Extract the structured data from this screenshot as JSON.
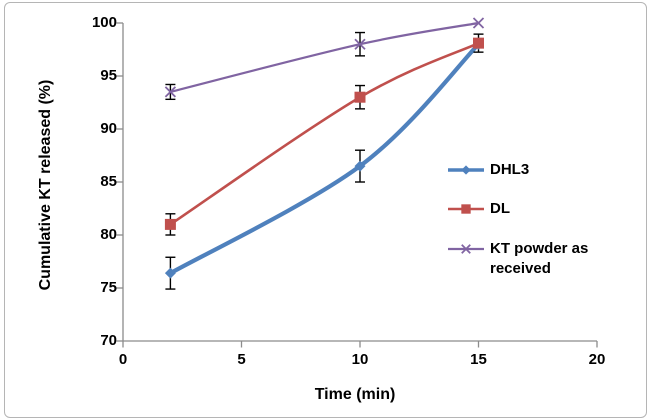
{
  "figure": {
    "background": "#ffffff",
    "border_color": "#b5b5b5"
  },
  "chart_data": {
    "type": "line",
    "title": "",
    "xlabel": "Time (min)",
    "ylabel": "Cumulative KT released (%)",
    "x": [
      2,
      10,
      15
    ],
    "series": [
      {
        "name": "DHL3",
        "values": [
          76.4,
          86.5,
          98.0
        ],
        "errors": [
          1.5,
          1.5,
          null
        ],
        "color": "#4F81BD",
        "marker": "diamond",
        "line_width": 4.2
      },
      {
        "name": "DL",
        "values": [
          81.0,
          93.0,
          98.1
        ],
        "errors": [
          1.0,
          1.1,
          0.85
        ],
        "color": "#C0504D",
        "marker": "square",
        "line_width": 2.6
      },
      {
        "name": "KT powder as received",
        "values": [
          93.5,
          98.0,
          100.0
        ],
        "errors": [
          0.7,
          1.1,
          null
        ],
        "color": "#8064A2",
        "marker": "x",
        "line_width": 2.2
      }
    ],
    "xlim": [
      0,
      20
    ],
    "ylim": [
      70,
      100
    ],
    "x_ticks": [
      0,
      5,
      10,
      15,
      20
    ],
    "y_ticks": [
      70,
      75,
      80,
      85,
      90,
      95,
      100
    ],
    "grid": false,
    "legend_position": "right-middle",
    "axis_color": "#8c8c8c",
    "error_bar_color": "#000000",
    "text_color": "#000000"
  }
}
